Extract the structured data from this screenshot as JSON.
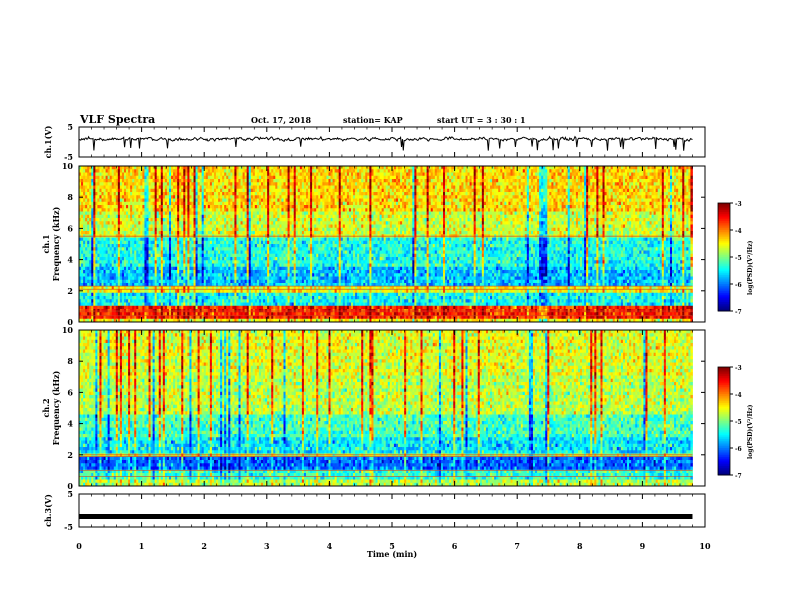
{
  "header": {
    "title": "VLF Spectra",
    "date": "Oct. 17, 2018",
    "station": "station= KAP",
    "start": "start  UT =   3 : 30 : 1"
  },
  "chart_data": [
    {
      "type": "line",
      "panel": "ch1-waveform",
      "ylabel": "ch.1(V)",
      "ylim": [
        -5,
        5
      ],
      "yticks": [
        "5",
        "-5"
      ],
      "xlim": [
        0,
        10
      ],
      "description_values": {
        "mean_v": 1.0,
        "min_v": -1.5,
        "max_v": 3.0,
        "end_min": 9.8
      }
    },
    {
      "type": "heatmap",
      "panel": "ch1-spectrogram",
      "ylabel": "ch.1\nFrequency (kHz)",
      "ylim": [
        0,
        10
      ],
      "yticks": [
        "0",
        "2",
        "4",
        "6",
        "8",
        "10"
      ],
      "xlim": [
        0,
        10
      ],
      "colorbar": {
        "label": "log(PSD)(V²/Hz)",
        "range": [
          -7,
          -3
        ],
        "ticks": [
          "-3",
          "-4",
          "-5",
          "-6",
          "-7"
        ]
      }
    },
    {
      "type": "heatmap",
      "panel": "ch2-spectrogram",
      "ylabel": "ch.2\nFrequency (kHz)",
      "ylim": [
        0,
        10
      ],
      "yticks": [
        "0",
        "2",
        "4",
        "6",
        "8",
        "10"
      ],
      "xlim": [
        0,
        10
      ],
      "colorbar": {
        "label": "log(PSD)(V²/Hz)",
        "range": [
          -7,
          -3
        ],
        "ticks": [
          "-3",
          "-4",
          "-5",
          "-6",
          "-7"
        ]
      }
    },
    {
      "type": "line",
      "panel": "ch3-waveform",
      "ylabel": "ch.3(V)",
      "ylim": [
        -5,
        5
      ],
      "yticks": [
        "5",
        "-5"
      ],
      "xlim": [
        0,
        10
      ],
      "description_values": {
        "level_v": -1.8,
        "end_min": 9.8
      }
    }
  ],
  "xaxis": {
    "label": "Time  (min)",
    "ticks": [
      "0",
      "1",
      "2",
      "3",
      "4",
      "5",
      "6",
      "7",
      "8",
      "9",
      "10"
    ]
  }
}
